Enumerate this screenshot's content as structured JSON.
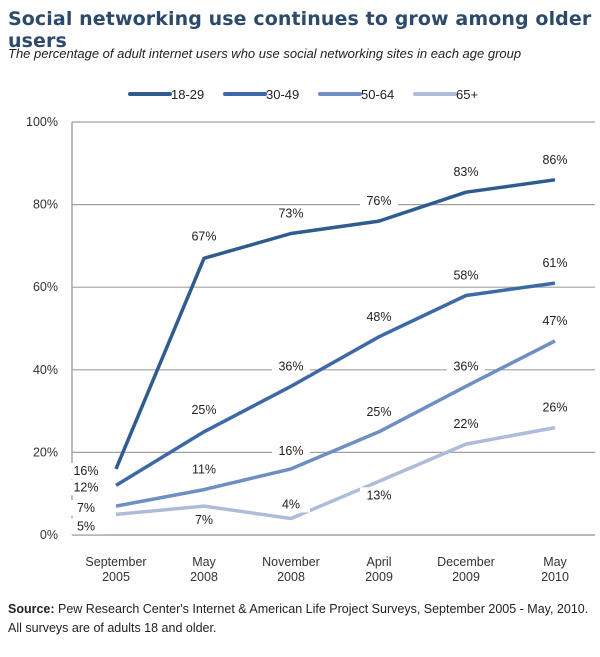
{
  "chart_data": {
    "type": "line",
    "title": "Social networking use continues to grow among older users",
    "subtitle": "The percentage of adult internet users who use social networking sites in each age group",
    "x": [
      [
        "September",
        "2005"
      ],
      [
        "May",
        "2008"
      ],
      [
        "November",
        "2008"
      ],
      [
        "April",
        "2009"
      ],
      [
        "December",
        "2009"
      ],
      [
        "May",
        "2010"
      ]
    ],
    "y_ticks": [
      "0%",
      "20%",
      "40%",
      "60%",
      "80%",
      "100%"
    ],
    "ylim": [
      0,
      100
    ],
    "xlabel": "",
    "ylabel": "",
    "grid": "horizontal",
    "legend_position": "top",
    "series": [
      {
        "name": "18-29",
        "color": "#2f5b8f",
        "values": [
          16,
          67,
          73,
          76,
          83,
          86
        ],
        "labels": [
          "16%",
          "67%",
          "73%",
          "76%",
          "83%",
          "86%"
        ]
      },
      {
        "name": "30-49",
        "color": "#3d6aa7",
        "values": [
          12,
          25,
          36,
          48,
          58,
          61
        ],
        "labels": [
          "12%",
          "25%",
          "36%",
          "48%",
          "58%",
          "61%"
        ]
      },
      {
        "name": "50-64",
        "color": "#6e8fc4",
        "values": [
          7,
          11,
          16,
          25,
          36,
          47
        ],
        "labels": [
          "7%",
          "11%",
          "16%",
          "25%",
          "36%",
          "47%"
        ]
      },
      {
        "name": "65+",
        "color": "#aebcdb",
        "values": [
          5,
          7,
          4,
          13,
          22,
          26
        ],
        "labels": [
          "5%",
          "7%",
          "4%",
          "13%",
          "22%",
          "26%"
        ]
      }
    ]
  },
  "source": {
    "label": "Source:",
    "text": " Pew Research Center's Internet & American Life Project Surveys, September 2005 - May, 2010. All surveys are of adults 18 and older."
  }
}
